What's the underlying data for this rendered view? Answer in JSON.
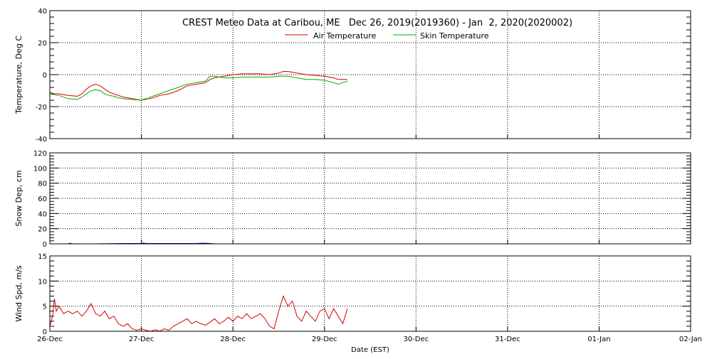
{
  "title": "CREST Meteo Data at Caribou, ME   Dec 26, 2019(2019360) - Jan  2, 2020(2020002)",
  "colors": {
    "air": "#d40000",
    "skin": "#00b000",
    "snow": "#0000cc",
    "wind": "#d40000",
    "frame": "#000000",
    "grid": "#000000"
  },
  "chart_data": [
    {
      "type": "line",
      "id": "temperature",
      "ylabel": "Temperature, Deg C",
      "ylim": [
        -40,
        40
      ],
      "yticks": [
        -40,
        -20,
        0,
        20,
        40
      ],
      "xlim": [
        0,
        7
      ],
      "xtick_labels": [
        "26-Dec",
        "27-Dec",
        "28-Dec",
        "29-Dec",
        "30-Dec",
        "31-Dec",
        "01-Jan",
        "02-Jan"
      ],
      "grid": true,
      "legend": "top-center",
      "series": [
        {
          "name": "Air Temperature",
          "color": "#d40000",
          "x": [
            0,
            0.05,
            0.1,
            0.2,
            0.3,
            0.35,
            0.4,
            0.45,
            0.5,
            0.55,
            0.6,
            0.65,
            0.7,
            0.75,
            0.8,
            0.9,
            1.0,
            1.05,
            1.1,
            1.2,
            1.3,
            1.4,
            1.5,
            1.6,
            1.7,
            1.75,
            1.8,
            1.9,
            2.0,
            2.1,
            2.2,
            2.3,
            2.4,
            2.5,
            2.55,
            2.6,
            2.7,
            2.8,
            2.9,
            3.0,
            3.1,
            3.15,
            3.2,
            3.25
          ],
          "values": [
            -11,
            -12,
            -12,
            -13,
            -13.5,
            -12,
            -9,
            -7,
            -6,
            -7,
            -9,
            -11,
            -12,
            -13,
            -14,
            -15,
            -16,
            -15,
            -15,
            -13,
            -12,
            -10,
            -7,
            -6,
            -5,
            -3,
            -2,
            -1,
            0,
            0.5,
            0.5,
            0.5,
            0,
            1,
            2,
            2,
            1,
            0,
            -0.5,
            -1,
            -2,
            -3,
            -3,
            -3
          ]
        },
        {
          "name": "Skin Temperature",
          "color": "#00b000",
          "x": [
            0,
            0.05,
            0.1,
            0.2,
            0.3,
            0.35,
            0.4,
            0.45,
            0.5,
            0.55,
            0.6,
            0.65,
            0.7,
            0.75,
            0.8,
            0.9,
            1.0,
            1.05,
            1.1,
            1.2,
            1.3,
            1.4,
            1.5,
            1.6,
            1.7,
            1.75,
            1.8,
            1.9,
            2.0,
            2.1,
            2.2,
            2.3,
            2.4,
            2.5,
            2.55,
            2.6,
            2.7,
            2.8,
            2.9,
            3.0,
            3.1,
            3.15,
            3.2,
            3.25
          ],
          "values": [
            -12,
            -12.5,
            -13,
            -15,
            -15.5,
            -14,
            -12,
            -10,
            -9.5,
            -10,
            -12,
            -13,
            -13.5,
            -14.5,
            -15,
            -15.5,
            -16,
            -15.5,
            -14,
            -12,
            -10,
            -8,
            -6,
            -5,
            -4,
            -1,
            -1,
            -2,
            -2,
            -1.5,
            -1.5,
            -1.5,
            -1.5,
            -1,
            -1,
            -1,
            -2,
            -3,
            -3,
            -3.5,
            -5,
            -6,
            -5,
            -4
          ]
        }
      ]
    },
    {
      "type": "line",
      "id": "snow",
      "ylabel": "Snow Dep, cm",
      "ylim": [
        0,
        120
      ],
      "yticks": [
        0,
        20,
        40,
        60,
        80,
        100,
        120
      ],
      "xlim": [
        0,
        7
      ],
      "grid": true,
      "series": [
        {
          "name": "",
          "color": "#0000cc",
          "x": [
            0,
            0.2,
            0.22,
            0.25,
            0.5,
            0.8,
            1.0,
            1.02,
            1.05,
            1.3,
            1.6,
            1.65,
            1.7,
            1.75,
            1.8
          ],
          "values": [
            0,
            0,
            0.8,
            0,
            0,
            0.5,
            0.5,
            1,
            0.5,
            0.5,
            0.5,
            0.8,
            0.8,
            0.5,
            0
          ]
        }
      ]
    },
    {
      "type": "line",
      "id": "wind",
      "ylabel": "Wind Spd, m/s",
      "ylim": [
        0,
        15
      ],
      "yticks": [
        0,
        5,
        10,
        15
      ],
      "xlim": [
        0,
        7
      ],
      "xlabel": "Date (EST)",
      "grid": true,
      "series": [
        {
          "name": "",
          "color": "#d40000",
          "x": [
            0,
            0.03,
            0.05,
            0.07,
            0.1,
            0.15,
            0.2,
            0.25,
            0.3,
            0.35,
            0.4,
            0.45,
            0.5,
            0.55,
            0.6,
            0.65,
            0.7,
            0.75,
            0.8,
            0.85,
            0.9,
            0.95,
            1.0,
            1.05,
            1.1,
            1.15,
            1.2,
            1.25,
            1.3,
            1.35,
            1.4,
            1.45,
            1.5,
            1.55,
            1.6,
            1.65,
            1.7,
            1.75,
            1.8,
            1.85,
            1.9,
            1.95,
            2.0,
            2.05,
            2.1,
            2.15,
            2.2,
            2.25,
            2.3,
            2.35,
            2.4,
            2.45,
            2.5,
            2.55,
            2.6,
            2.65,
            2.7,
            2.75,
            2.8,
            2.85,
            2.9,
            2.95,
            3.0,
            3.05,
            3.1,
            3.15,
            3.2,
            3.25
          ],
          "values": [
            1,
            3,
            6.5,
            4,
            5,
            3.5,
            4,
            3.5,
            4,
            3,
            4,
            5.5,
            3.5,
            3,
            4,
            2.5,
            3,
            1.5,
            1,
            1.5,
            0.5,
            0.2,
            0.5,
            0.2,
            0,
            0.3,
            0,
            0.5,
            0.2,
            1,
            1.5,
            2,
            2.5,
            1.5,
            2,
            1.5,
            1.2,
            1.8,
            2.5,
            1.5,
            2,
            2.8,
            2,
            3,
            2.5,
            3.5,
            2.5,
            3,
            3.5,
            2.5,
            1,
            0.5,
            4,
            7,
            5,
            6,
            3,
            2,
            4,
            3,
            2,
            4,
            4.5,
            2.5,
            4.5,
            3,
            1.5,
            4.5
          ]
        }
      ]
    }
  ]
}
